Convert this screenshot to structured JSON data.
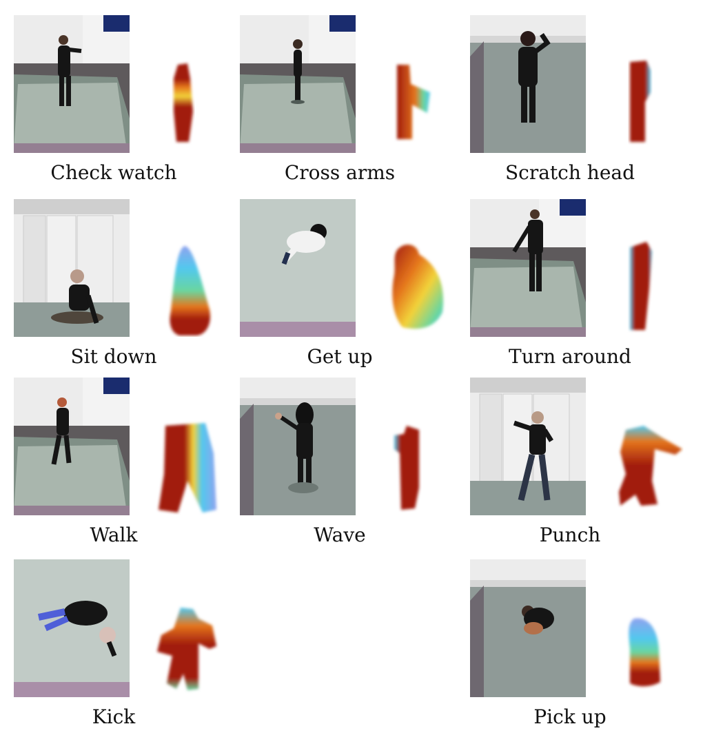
{
  "figure": {
    "rows": [
      [
        {
          "label": "Check watch",
          "scene": "corner-room",
          "pose": "stand-arm-raised",
          "mhi": "narrow-upper-warm"
        },
        {
          "label": "Cross arms",
          "scene": "corner-room",
          "pose": "stand-side",
          "mhi": "narrow-side-cool"
        },
        {
          "label": "Scratch head",
          "scene": "floor-close",
          "pose": "stand-hand-head",
          "mhi": "narrow-red"
        }
      ],
      [
        {
          "label": "Sit down",
          "scene": "wide-room",
          "pose": "sitting",
          "mhi": "tall-cool-top"
        },
        {
          "label": "Get up",
          "scene": "top-view",
          "pose": "topview-person",
          "mhi": "wide-warm-cool"
        },
        {
          "label": "Turn around",
          "scene": "corner-room",
          "pose": "stand-back",
          "mhi": "narrow-red-halo"
        }
      ],
      [
        {
          "label": "Walk",
          "scene": "corner-room",
          "pose": "walking",
          "mhi": "wide-rainbow-right"
        },
        {
          "label": "Wave",
          "scene": "floor-close",
          "pose": "stand-wave",
          "mhi": "narrow-red-left"
        },
        {
          "label": "Punch",
          "scene": "wide-room",
          "pose": "punch",
          "mhi": "punch-arm"
        }
      ],
      [
        {
          "label": "Kick",
          "scene": "top-view",
          "pose": "kick",
          "mhi": "wide-cool-top"
        },
        null,
        {
          "label": "Pick up",
          "scene": "floor-close",
          "pose": "crouch",
          "mhi": "short-cool-top"
        }
      ]
    ],
    "colors": {
      "mhi_red": "#a11c0d",
      "mhi_orange": "#e4751c",
      "mhi_yellow": "#f2d23a",
      "mhi_green": "#6ad6a0",
      "mhi_cyan": "#52c8ee",
      "mhi_blue": "#8fa3ef",
      "wall": "#ececec",
      "floor": "#8f9c98",
      "mat": "#a9b6ad",
      "clothing": "#151515"
    }
  }
}
